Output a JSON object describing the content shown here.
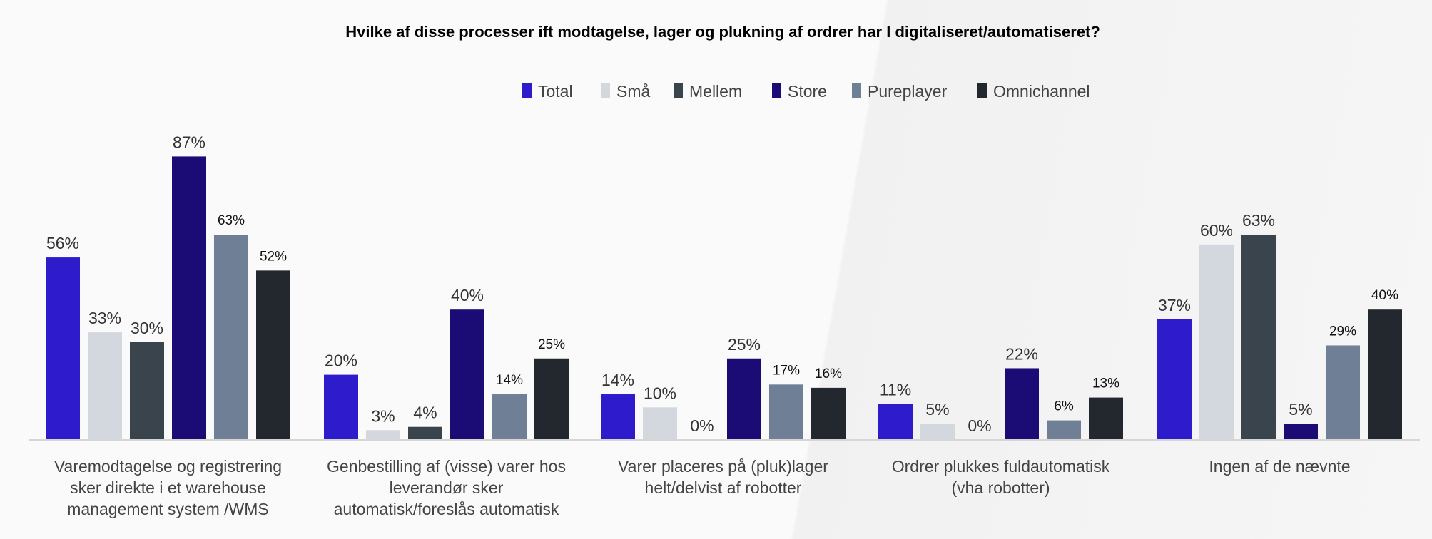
{
  "chart_data": {
    "type": "bar",
    "title": "Hvilke af disse processer ift modtagelse, lager og plukning af ordrer har I digitaliseret/automatiseret?",
    "xlabel": "",
    "ylabel": "",
    "ylim": [
      0,
      100
    ],
    "grid": false,
    "legend_position": "top-center",
    "categories": [
      [
        "Varemodtagelse og registrering",
        "sker direkte i et warehouse",
        "management system /WMS"
      ],
      [
        "Genbestilling af (visse) varer hos",
        "leverandør sker",
        "automatisk/foreslås automatisk"
      ],
      [
        "Varer placeres på (pluk)lager",
        "helt/delvist af robotter"
      ],
      [
        "Ordrer plukkes fuldautomatisk",
        "(vha robotter)"
      ],
      [
        "Ingen af de nævnte"
      ]
    ],
    "series": [
      {
        "name": "Total",
        "color": "#2d1bcc",
        "values": [
          56,
          20,
          14,
          11,
          37
        ]
      },
      {
        "name": "Små",
        "color": "#d3d8df",
        "values": [
          33,
          3,
          10,
          5,
          60
        ]
      },
      {
        "name": "Mellem",
        "color": "#39444d",
        "values": [
          30,
          4,
          0,
          0,
          63
        ]
      },
      {
        "name": "Store",
        "color": "#1b0c75",
        "values": [
          87,
          40,
          25,
          22,
          5
        ]
      },
      {
        "name": "Pureplayer",
        "color": "#6e7f96",
        "values": [
          63,
          14,
          17,
          6,
          29
        ]
      },
      {
        "name": "Omnichannel",
        "color": "#23282e",
        "values": [
          52,
          25,
          16,
          13,
          40
        ]
      }
    ],
    "value_suffix": "%"
  }
}
